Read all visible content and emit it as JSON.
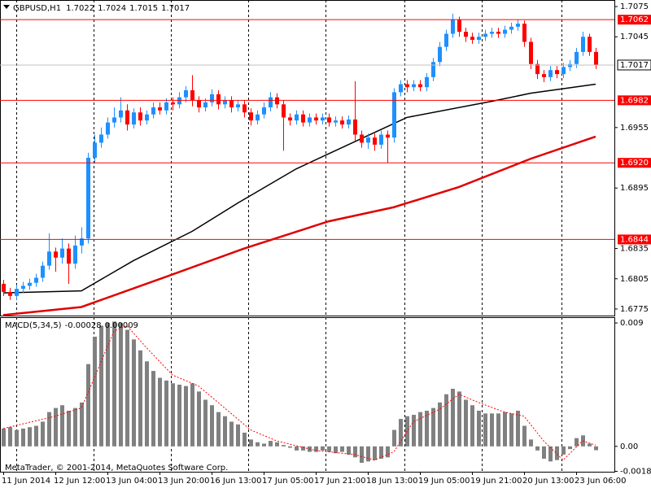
{
  "chart_data": [
    {
      "type": "candlestick",
      "title": "GBPUSD,H1",
      "last_bar": [
        1.7022,
        1.7024,
        1.7015,
        1.7017
      ],
      "up_color": "#1e90ff",
      "down_color": "#ff0000",
      "categories": [
        "11 Jun 2014",
        null,
        null,
        null,
        null,
        null,
        null,
        null,
        "12 Jun 12:00",
        null,
        null,
        null,
        null,
        null,
        null,
        null,
        "13 Jun 04:00",
        null,
        null,
        null,
        null,
        null,
        null,
        null,
        "13 Jun 20:00",
        null,
        null,
        null,
        null,
        null,
        null,
        null,
        "16 Jun 13:00",
        null,
        null,
        null,
        null,
        null,
        null,
        null,
        "17 Jun 05:00",
        null,
        null,
        null,
        null,
        null,
        null,
        null,
        "17 Jun 21:00",
        null,
        null,
        null,
        null,
        null,
        null,
        null,
        "18 Jun 13:00",
        null,
        null,
        null,
        null,
        null,
        null,
        null,
        "19 Jun 05:00",
        null,
        null,
        null,
        null,
        null,
        null,
        null,
        "19 Jun 21:00",
        null,
        null,
        null,
        null,
        null,
        null,
        null,
        "20 Jun 13:00",
        null,
        null,
        null,
        null,
        null,
        null,
        null,
        "23 Jun 06:00",
        null,
        null,
        null
      ],
      "open": [
        1.68,
        1.6792,
        1.6788,
        1.6795,
        1.6798,
        1.6801,
        1.6806,
        1.6818,
        1.6832,
        1.6826,
        1.6835,
        1.682,
        1.6838,
        1.6845,
        1.6925,
        1.694,
        1.6948,
        1.696,
        1.6965,
        1.6972,
        1.6958,
        1.697,
        1.6962,
        1.6968,
        1.6975,
        1.6972,
        1.698,
        1.6978,
        1.6985,
        1.6992,
        1.6982,
        1.6975,
        1.698,
        1.6988,
        1.6978,
        1.6982,
        1.6975,
        1.6978,
        1.697,
        1.6962,
        1.6968,
        1.6975,
        1.6985,
        1.6978,
        1.6965,
        1.6962,
        1.6968,
        1.696,
        1.6965,
        1.6962,
        1.6965,
        1.696,
        1.6962,
        1.6958,
        1.6963,
        1.6948,
        1.694,
        1.6945,
        1.6938,
        1.6948,
        1.6945,
        1.699,
        1.6998,
        1.6995,
        1.6998,
        1.6995,
        1.7005,
        1.702,
        1.7035,
        1.7048,
        1.7062,
        1.705,
        1.7045,
        1.7042,
        1.7045,
        1.7048,
        1.705,
        1.7048,
        1.7052,
        1.7055,
        1.7058,
        1.704,
        1.7018,
        1.7008,
        1.7005,
        1.7012,
        1.7008,
        1.7015,
        1.7018,
        1.703,
        1.7045,
        1.703
      ],
      "high": [
        1.6804,
        1.6796,
        1.6799,
        1.6802,
        1.6805,
        1.681,
        1.6822,
        1.685,
        1.6836,
        1.6845,
        1.684,
        1.6848,
        1.6856,
        1.693,
        1.6948,
        1.6955,
        1.6965,
        1.6975,
        1.6985,
        1.6978,
        1.6974,
        1.6975,
        1.6972,
        1.698,
        1.698,
        1.6984,
        1.6985,
        1.699,
        1.6996,
        1.7007,
        1.6986,
        1.6984,
        1.6993,
        1.6992,
        1.6986,
        1.6986,
        1.6982,
        1.6982,
        1.6974,
        1.6972,
        1.698,
        1.699,
        1.6989,
        1.6982,
        1.6969,
        1.6972,
        1.6972,
        1.6969,
        1.6969,
        1.6969,
        1.6969,
        1.6966,
        1.6966,
        1.6967,
        1.7001,
        1.6952,
        1.6949,
        1.6949,
        1.6952,
        1.6952,
        1.6994,
        1.7002,
        1.7002,
        1.7002,
        1.7002,
        1.7009,
        1.7024,
        1.704,
        1.7052,
        1.7068,
        1.7065,
        1.7054,
        1.7049,
        1.7049,
        1.7052,
        1.7054,
        1.7054,
        1.7056,
        1.7059,
        1.7062,
        1.7061,
        1.7044,
        1.7022,
        1.7012,
        1.7016,
        1.7016,
        1.7019,
        1.7022,
        1.7034,
        1.705,
        1.7048,
        1.7034
      ],
      "low": [
        1.6788,
        1.6784,
        1.6784,
        1.6791,
        1.6794,
        1.6797,
        1.6802,
        1.6814,
        1.6812,
        1.682,
        1.68,
        1.6815,
        1.683,
        1.684,
        1.692,
        1.6935,
        1.6944,
        1.6955,
        1.696,
        1.6952,
        1.6954,
        1.6957,
        1.6958,
        1.6964,
        1.6968,
        1.6968,
        1.6972,
        1.6974,
        1.698,
        1.6976,
        1.697,
        1.6971,
        1.6976,
        1.6973,
        1.6974,
        1.697,
        1.6971,
        1.6965,
        1.6957,
        1.6958,
        1.6964,
        1.6971,
        1.6974,
        1.6932,
        1.6957,
        1.6958,
        1.6956,
        1.6956,
        1.6958,
        1.6958,
        1.6956,
        1.6956,
        1.6954,
        1.6954,
        1.6942,
        1.6935,
        1.6934,
        1.6932,
        1.6934,
        1.692,
        1.694,
        1.6986,
        1.699,
        1.6991,
        1.6991,
        1.6991,
        1.7001,
        1.7016,
        1.7031,
        1.7044,
        1.7045,
        1.704,
        1.7038,
        1.7038,
        1.7041,
        1.7044,
        1.7044,
        1.7044,
        1.7048,
        1.7051,
        1.7035,
        1.7013,
        1.7003,
        1.7,
        1.7001,
        1.7004,
        1.7004,
        1.7011,
        1.7014,
        1.7026,
        1.7026,
        1.7013
      ],
      "close": [
        1.6792,
        1.6788,
        1.6795,
        1.6798,
        1.6801,
        1.6806,
        1.6818,
        1.6832,
        1.6826,
        1.6835,
        1.682,
        1.6838,
        1.6845,
        1.6925,
        1.694,
        1.6948,
        1.696,
        1.6965,
        1.6972,
        1.6958,
        1.697,
        1.6962,
        1.6968,
        1.6975,
        1.6972,
        1.698,
        1.6978,
        1.6985,
        1.6992,
        1.6982,
        1.6975,
        1.698,
        1.6988,
        1.6978,
        1.6982,
        1.6975,
        1.6978,
        1.697,
        1.6962,
        1.6968,
        1.6975,
        1.6985,
        1.6978,
        1.6965,
        1.6962,
        1.6968,
        1.696,
        1.6965,
        1.6962,
        1.6965,
        1.696,
        1.6962,
        1.6958,
        1.6963,
        1.6948,
        1.694,
        1.6945,
        1.6938,
        1.6948,
        1.6945,
        1.699,
        1.6998,
        1.6995,
        1.6998,
        1.6995,
        1.7005,
        1.702,
        1.7035,
        1.7048,
        1.7062,
        1.705,
        1.7045,
        1.7042,
        1.7045,
        1.7048,
        1.705,
        1.7048,
        1.7052,
        1.7055,
        1.7058,
        1.704,
        1.7018,
        1.7008,
        1.7005,
        1.7012,
        1.7008,
        1.7015,
        1.7018,
        1.703,
        1.7045,
        1.703,
        1.7017
      ],
      "series": [
        {
          "color": "#000000",
          "x": [
            0,
            12,
            20,
            29,
            36,
            45,
            55,
            62,
            75,
            81,
            91
          ],
          "values": [
            1.6791,
            1.6793,
            1.6823,
            1.6852,
            1.688,
            1.6914,
            1.6944,
            1.6965,
            1.6981,
            1.6989,
            1.6998
          ]
        },
        {
          "color": "#e00000",
          "x": [
            0,
            12,
            25,
            37,
            50,
            60,
            70,
            81,
            91
          ],
          "values": [
            1.6769,
            1.6777,
            1.6807,
            1.6835,
            1.6862,
            1.6876,
            1.6896,
            1.6924,
            1.6946
          ]
        }
      ],
      "levels": [
        1.7062,
        1.6982,
        {
          "value": 1.692,
          "label": "1.6920"
        },
        1.6844
      ],
      "level_color": "#ff0000",
      "current_price": 1.7017,
      "ylim": [
        1.67685,
        1.70815
      ],
      "yticks": [
        1.7075,
        1.7045,
        1.6955,
        1.6895,
        1.6835,
        1.6805,
        1.6775
      ]
    },
    {
      "type": "bar",
      "title": "MACD(5,34,5)",
      "series": [
        {
          "color": "#808080",
          "values": [
            0.0013,
            0.0014,
            0.0012,
            0.0013,
            0.0014,
            0.0015,
            0.0018,
            0.0025,
            0.0028,
            0.003,
            0.0026,
            0.0028,
            0.0032,
            0.006,
            0.008,
            0.0088,
            0.009,
            0.0091,
            0.009,
            0.0085,
            0.0078,
            0.007,
            0.0062,
            0.0055,
            0.005,
            0.0048,
            0.0046,
            0.0045,
            0.0044,
            0.0046,
            0.004,
            0.0034,
            0.003,
            0.0025,
            0.0022,
            0.0018,
            0.0016,
            0.001,
            0.0005,
            0.0003,
            0.0002,
            0.0004,
            0.0003,
            0.0001,
            -0.0001,
            -0.0003,
            -0.0003,
            -0.0004,
            -0.0004,
            -0.0003,
            -0.0004,
            -0.0005,
            -0.0004,
            -0.0006,
            -0.0008,
            -0.0012,
            -0.0011,
            -0.001,
            -0.0009,
            -0.0008,
            0.0012,
            0.002,
            0.0022,
            0.0023,
            0.0025,
            0.0026,
            0.0028,
            0.0032,
            0.0038,
            0.0042,
            0.004,
            0.0034,
            0.003,
            0.0026,
            0.0024,
            0.0024,
            0.0024,
            0.0025,
            0.0024,
            0.0026,
            0.0015,
            0.0005,
            -0.0003,
            -0.0009,
            -0.0011,
            -0.001,
            -0.0006,
            -0.0002,
            0.0006,
            0.0008,
            0.0002,
            -0.00028
          ]
        },
        {
          "color": "#ff0000",
          "x": [
            0,
            8,
            12,
            14,
            17,
            19,
            22,
            26,
            30,
            34,
            38,
            42,
            48,
            54,
            57,
            60,
            63,
            67,
            70,
            73,
            77,
            80,
            83,
            86,
            89,
            91
          ],
          "values": [
            0.0013,
            0.0022,
            0.0028,
            0.005,
            0.0084,
            0.0088,
            0.0072,
            0.0052,
            0.0044,
            0.0028,
            0.0012,
            0.0004,
            -0.0003,
            -0.0006,
            -0.001,
            -0.0004,
            0.0018,
            0.0027,
            0.0038,
            0.0032,
            0.0025,
            0.0022,
            0.0004,
            -0.001,
            0.0004,
            9e-05
          ]
        }
      ],
      "ylim": [
        -0.00185,
        0.00936
      ],
      "yticks": [
        0.009,
        {
          "value": 0,
          "label": "0.00"
        },
        -0.00182
      ]
    }
  ],
  "watermark": "MetaTrader, © 2001-2014, MetaQuotes Software Corp."
}
